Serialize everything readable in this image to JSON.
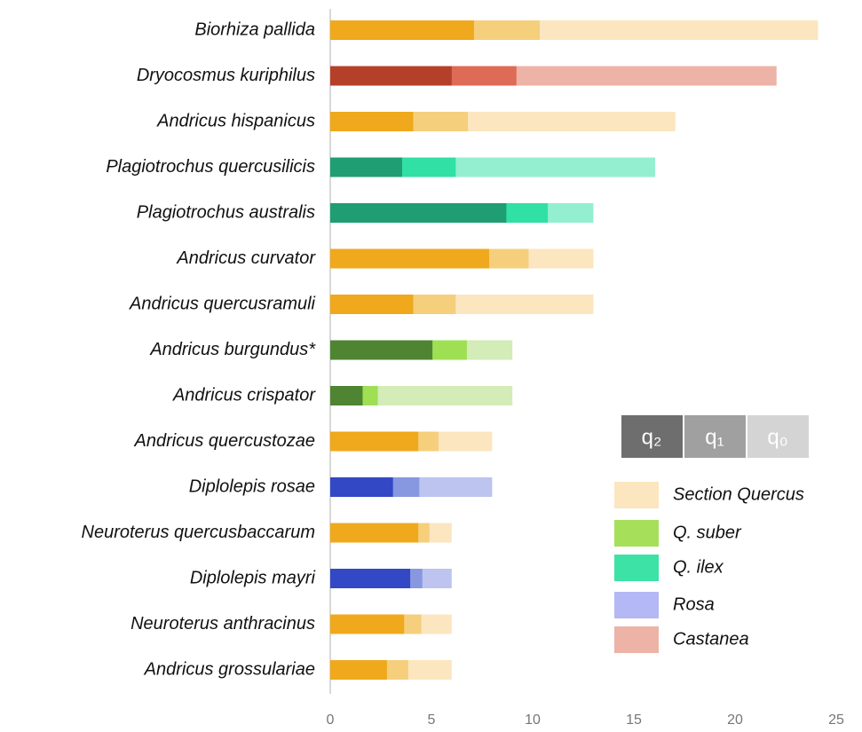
{
  "chart_data": {
    "type": "bar",
    "orientation": "horizontal",
    "layering": "overlap",
    "categories": [
      "Biorhiza pallida",
      "Dryocosmus kuriphilus",
      "Andricus hispanicus",
      "Plagiotrochus quercusilicis",
      "Plagiotrochus australis",
      "Andricus curvator",
      "Andricus quercusramuli",
      "Andricus burgundus*",
      "Andricus crispator",
      "Andricus quercustozae",
      "Diplolepis rosae",
      "Neuroterus quercusbaccarum",
      "Diplolepis mayri",
      "Neuroterus anthracinus",
      "Andricus grossulariae"
    ],
    "category_host": [
      0,
      4,
      0,
      2,
      2,
      0,
      0,
      1,
      1,
      0,
      3,
      0,
      3,
      0,
      0
    ],
    "hosts": [
      {
        "name": "Section Quercus",
        "color": "#fbe6c0",
        "colors": [
          "#f0a81c",
          "#f5cf7c",
          "#fbe6c0"
        ]
      },
      {
        "name": "Q. suber",
        "color": "#a6e05a",
        "colors": [
          "#4f8433",
          "#9edf53",
          "#d3ecb8"
        ]
      },
      {
        "name": "Q. ilex",
        "color": "#3de3a6",
        "colors": [
          "#1f9e73",
          "#31e0a4",
          "#93efcf"
        ]
      },
      {
        "name": "Rosa",
        "color": "#b4b8f5",
        "colors": [
          "#3348c4",
          "#8898e0",
          "#bcc4ef"
        ]
      },
      {
        "name": "Castanea",
        "color": "#edb3a6",
        "colors": [
          "#b5402a",
          "#de6b55",
          "#edb3a6"
        ]
      }
    ],
    "series": [
      {
        "name": "q₂",
        "color": "#6e6e6e",
        "values": [
          7.1,
          6.0,
          4.1,
          3.55,
          8.7,
          7.85,
          4.1,
          5.05,
          1.6,
          4.35,
          3.1,
          4.35,
          3.95,
          3.65,
          2.8
        ]
      },
      {
        "name": "q₁",
        "color": "#a0a0a0",
        "values": [
          10.35,
          9.2,
          6.8,
          6.2,
          10.75,
          9.8,
          6.2,
          6.75,
          2.35,
          5.35,
          4.4,
          4.9,
          4.55,
          4.5,
          3.85
        ]
      },
      {
        "name": "q₀",
        "color": "#d4d4d4",
        "values": [
          24.1,
          22.05,
          17.05,
          16.05,
          13.0,
          13.0,
          13.0,
          9.0,
          9.0,
          8.0,
          8.0,
          6.0,
          6.0,
          6.0,
          6.0
        ]
      }
    ],
    "xlim": [
      0,
      25
    ],
    "xticks": [
      0,
      5,
      10,
      15,
      20,
      25
    ]
  }
}
